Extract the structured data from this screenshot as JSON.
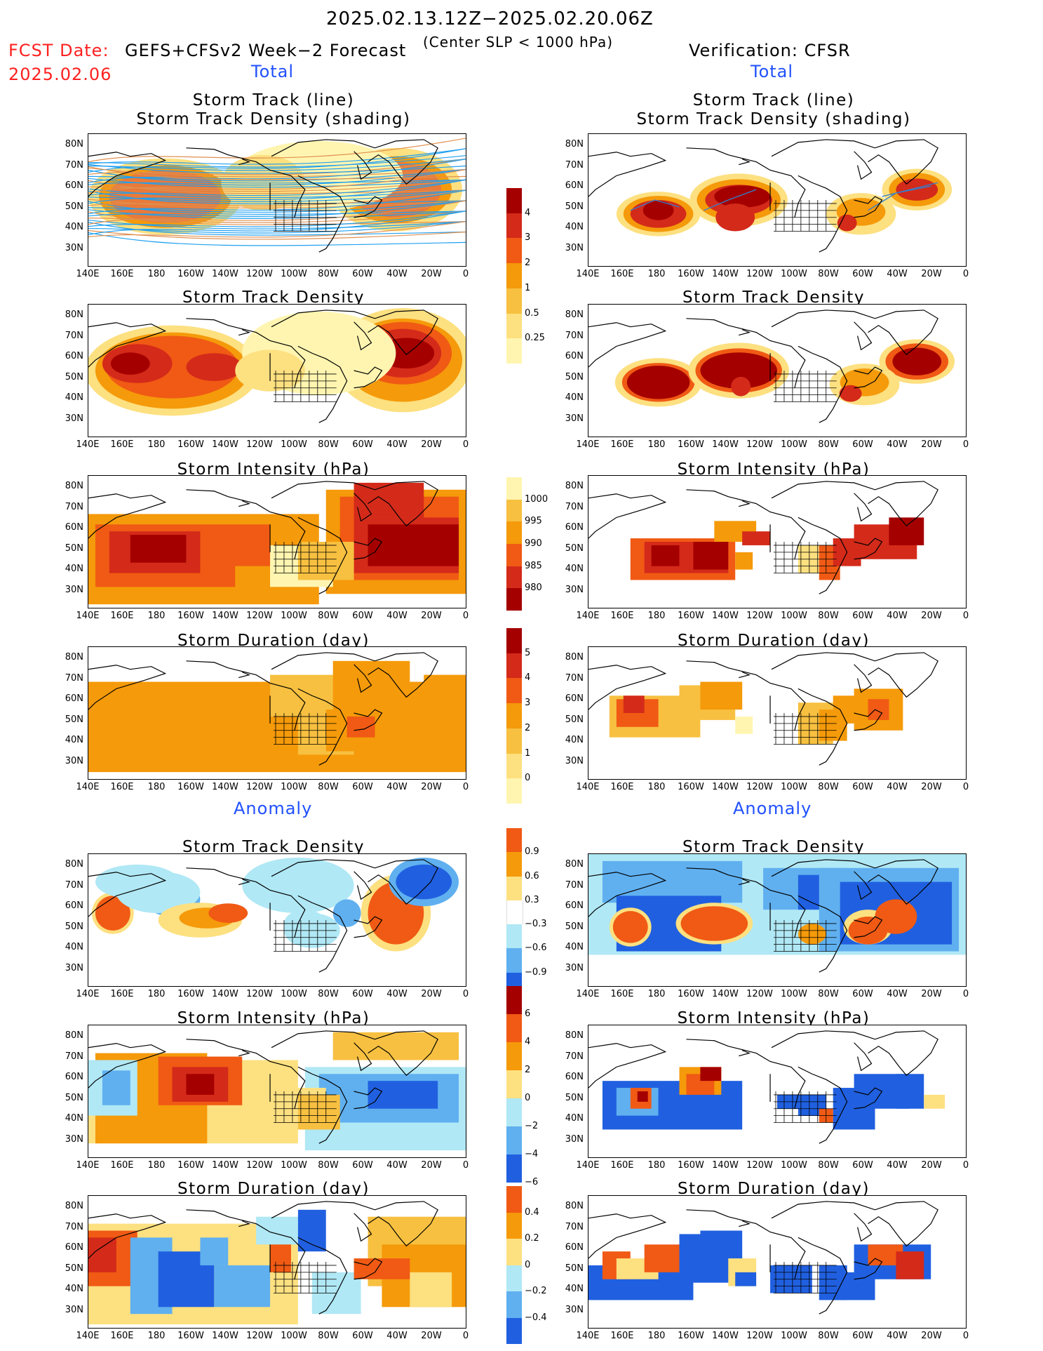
{
  "header": {
    "date_range": "2025.02.13.12Z−2025.02.20.06Z",
    "fcst_label": "FCST Date:",
    "fcst_date": "2025.02.06",
    "model": "GEFS+CFSv2 Week−2 Forecast",
    "criterion": "(Center SLP < 1000 hPa)",
    "verification": "Verification: CFSR",
    "total_left": "Total",
    "total_right": "Total",
    "anomaly_left": "Anomaly",
    "anomaly_right": "Anomaly"
  },
  "panel_titles": {
    "track_line": "Storm Track (line)",
    "track_shading": "Storm Track Density (shading)",
    "density": "Storm Track Density",
    "intensity": "Storm Intensity (hPa)",
    "duration": "Storm Duration (day)"
  },
  "axes": {
    "y_ticks": [
      "80N",
      "70N",
      "60N",
      "50N",
      "40N",
      "30N"
    ],
    "x_ticks": [
      "140E",
      "160E",
      "180",
      "160W",
      "140W",
      "120W",
      "100W",
      "80W",
      "60W",
      "40W",
      "20W",
      "0"
    ]
  },
  "colorbars": {
    "density_total": {
      "labels": [
        "4",
        "3",
        "2",
        "1",
        "0.5",
        "0.25"
      ],
      "colors": [
        "#a50000",
        "#d42a1a",
        "#f05a14",
        "#f59a0a",
        "#f7c040",
        "#fde080",
        "#fff5b0"
      ]
    },
    "intensity_total": {
      "labels": [
        "1000",
        "995",
        "990",
        "985",
        "980"
      ],
      "colors": [
        "#fff5b0",
        "#f7c040",
        "#f59a0a",
        "#f05a14",
        "#d42a1a",
        "#a50000"
      ]
    },
    "duration_total": {
      "labels": [
        "5",
        "4",
        "3",
        "2",
        "1",
        "0"
      ],
      "colors": [
        "#a50000",
        "#d42a1a",
        "#f05a14",
        "#f59a0a",
        "#f7c040",
        "#fde080",
        "#fff5b0"
      ]
    },
    "density_anom": {
      "labels": [
        "0.9",
        "0.6",
        "0.3",
        "−0.3",
        "−0.6",
        "−0.9"
      ],
      "colors": [
        "#f05a14",
        "#f59a0a",
        "#fde080",
        "#ffffff",
        "#b0e8f5",
        "#60b0f0",
        "#2060e0"
      ]
    },
    "intensity_anom": {
      "labels": [
        "6",
        "4",
        "2",
        "0",
        "−2",
        "−4",
        "−6"
      ],
      "colors": [
        "#a50000",
        "#f05a14",
        "#f59a0a",
        "#fde080",
        "#b0e8f5",
        "#60b0f0",
        "#2060e0"
      ]
    },
    "duration_anom": {
      "labels": [
        "0.4",
        "0.2",
        "0",
        "−0.2",
        "−0.4"
      ],
      "colors": [
        "#f05a14",
        "#f59a0a",
        "#fde080",
        "#b0e8f5",
        "#60b0f0",
        "#2060e0"
      ]
    }
  }
}
